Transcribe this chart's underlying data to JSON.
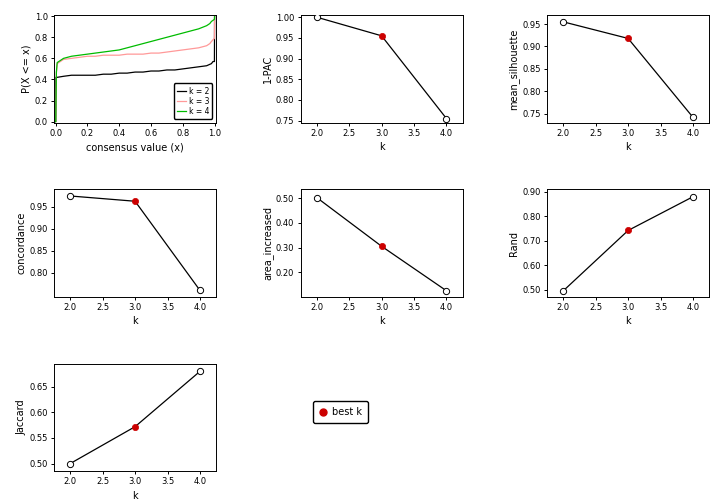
{
  "ecdf": {
    "k2": {
      "x": [
        0.0,
        0.001,
        0.002,
        0.01,
        0.05,
        0.1,
        0.15,
        0.2,
        0.25,
        0.3,
        0.35,
        0.4,
        0.45,
        0.5,
        0.55,
        0.6,
        0.65,
        0.7,
        0.75,
        0.8,
        0.85,
        0.9,
        0.95,
        0.98,
        0.99,
        0.999,
        1.0
      ],
      "y": [
        0.0,
        0.0,
        0.42,
        0.42,
        0.43,
        0.44,
        0.44,
        0.44,
        0.44,
        0.45,
        0.45,
        0.46,
        0.46,
        0.47,
        0.47,
        0.48,
        0.48,
        0.49,
        0.49,
        0.5,
        0.51,
        0.52,
        0.53,
        0.55,
        0.57,
        0.57,
        1.0
      ],
      "color": "#000000"
    },
    "k3": {
      "x": [
        0.0,
        0.001,
        0.005,
        0.01,
        0.05,
        0.1,
        0.15,
        0.2,
        0.25,
        0.3,
        0.35,
        0.4,
        0.45,
        0.5,
        0.55,
        0.6,
        0.65,
        0.7,
        0.75,
        0.8,
        0.85,
        0.9,
        0.95,
        0.97,
        0.98,
        0.999,
        1.0
      ],
      "y": [
        0.0,
        0.0,
        0.46,
        0.55,
        0.59,
        0.6,
        0.61,
        0.62,
        0.62,
        0.63,
        0.63,
        0.63,
        0.64,
        0.64,
        0.64,
        0.65,
        0.65,
        0.66,
        0.67,
        0.68,
        0.69,
        0.7,
        0.72,
        0.74,
        0.76,
        0.79,
        1.0
      ],
      "color": "#FF9999"
    },
    "k4": {
      "x": [
        0.0,
        0.001,
        0.005,
        0.01,
        0.05,
        0.1,
        0.15,
        0.2,
        0.25,
        0.3,
        0.35,
        0.4,
        0.45,
        0.5,
        0.55,
        0.6,
        0.65,
        0.7,
        0.75,
        0.8,
        0.85,
        0.9,
        0.95,
        0.97,
        0.98,
        0.999,
        1.0
      ],
      "y": [
        0.0,
        0.0,
        0.47,
        0.56,
        0.6,
        0.62,
        0.63,
        0.64,
        0.65,
        0.66,
        0.67,
        0.68,
        0.7,
        0.72,
        0.74,
        0.76,
        0.78,
        0.8,
        0.82,
        0.84,
        0.86,
        0.88,
        0.91,
        0.93,
        0.95,
        0.97,
        1.0
      ],
      "color": "#00BB00"
    }
  },
  "pac": {
    "k": [
      2,
      3,
      4
    ],
    "y": [
      1.0,
      0.955,
      0.755
    ],
    "best_k": 3,
    "ylim": [
      0.745,
      1.005
    ],
    "yticks": [
      0.75,
      0.8,
      0.85,
      0.9,
      0.95,
      1.0
    ],
    "ylabel": "1-PAC"
  },
  "silhouette": {
    "k": [
      2,
      3,
      4
    ],
    "y": [
      0.955,
      0.918,
      0.742
    ],
    "best_k": 3,
    "ylim": [
      0.73,
      0.97
    ],
    "yticks": [
      0.75,
      0.8,
      0.85,
      0.9,
      0.95
    ],
    "ylabel": "mean_silhouette"
  },
  "concordance": {
    "k": [
      2,
      3,
      4
    ],
    "y": [
      0.975,
      0.963,
      0.76
    ],
    "best_k": 3,
    "ylim": [
      0.745,
      0.99
    ],
    "yticks": [
      0.8,
      0.85,
      0.9,
      0.95
    ],
    "ylabel": "concordance"
  },
  "area_increased": {
    "k": [
      2,
      3,
      4
    ],
    "y": [
      0.502,
      0.305,
      0.125
    ],
    "best_k": 3,
    "ylim": [
      0.1,
      0.535
    ],
    "yticks": [
      0.2,
      0.3,
      0.4,
      0.5
    ],
    "ylabel": "area_increased"
  },
  "rand": {
    "k": [
      2,
      3,
      4
    ],
    "y": [
      0.495,
      0.742,
      0.88
    ],
    "best_k": 3,
    "ylim": [
      0.47,
      0.91
    ],
    "yticks": [
      0.5,
      0.6,
      0.7,
      0.8,
      0.9
    ],
    "ylabel": "Rand"
  },
  "jaccard": {
    "k": [
      2,
      3,
      4
    ],
    "y": [
      0.5,
      0.572,
      0.68
    ],
    "best_k": 3,
    "ylim": [
      0.485,
      0.695
    ],
    "yticks": [
      0.5,
      0.55,
      0.6,
      0.65
    ],
    "ylabel": "Jaccard"
  },
  "best_k_color": "#CC0000",
  "open_circle_color": "white",
  "line_color": "black",
  "bg_color": "white"
}
